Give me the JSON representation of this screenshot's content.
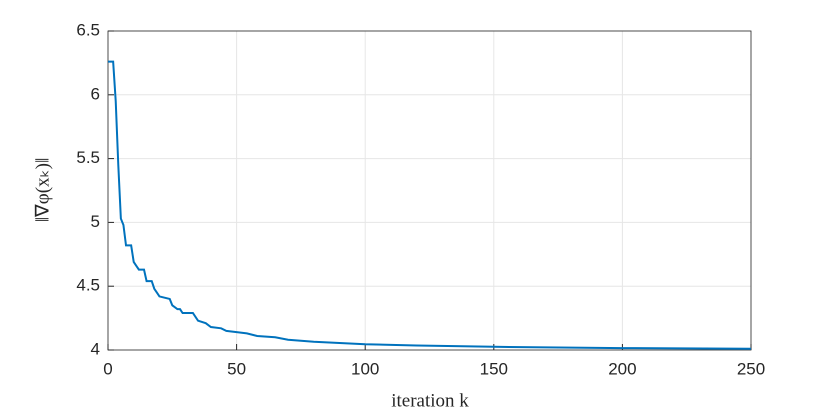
{
  "chart_data": {
    "type": "line",
    "xlabel": "iteration k",
    "ylabel": "‖∇φ(xₖ)‖",
    "x": [
      0,
      2,
      3,
      4,
      5,
      6,
      7,
      9,
      10,
      11,
      12,
      14,
      15,
      17,
      18,
      19,
      20,
      22,
      24,
      25,
      27,
      28,
      29,
      33,
      35,
      38,
      40,
      44,
      46,
      50,
      54,
      58,
      65,
      70,
      80,
      90,
      100,
      120,
      150,
      200,
      250
    ],
    "values": [
      6.26,
      6.26,
      5.95,
      5.45,
      5.03,
      4.98,
      4.82,
      4.82,
      4.69,
      4.66,
      4.63,
      4.63,
      4.54,
      4.54,
      4.48,
      4.45,
      4.42,
      4.41,
      4.4,
      4.35,
      4.32,
      4.32,
      4.29,
      4.29,
      4.23,
      4.21,
      4.18,
      4.17,
      4.15,
      4.14,
      4.13,
      4.11,
      4.1,
      4.08,
      4.065,
      4.055,
      4.045,
      4.035,
      4.025,
      4.015,
      4.01
    ],
    "color": "#0072bd",
    "xlim": [
      0,
      250
    ],
    "xticks": [
      0,
      50,
      100,
      150,
      200,
      250
    ],
    "ylim": [
      4,
      6.5
    ],
    "yticks": [
      4,
      4.5,
      5,
      5.5,
      6,
      6.5
    ],
    "grid": true
  }
}
